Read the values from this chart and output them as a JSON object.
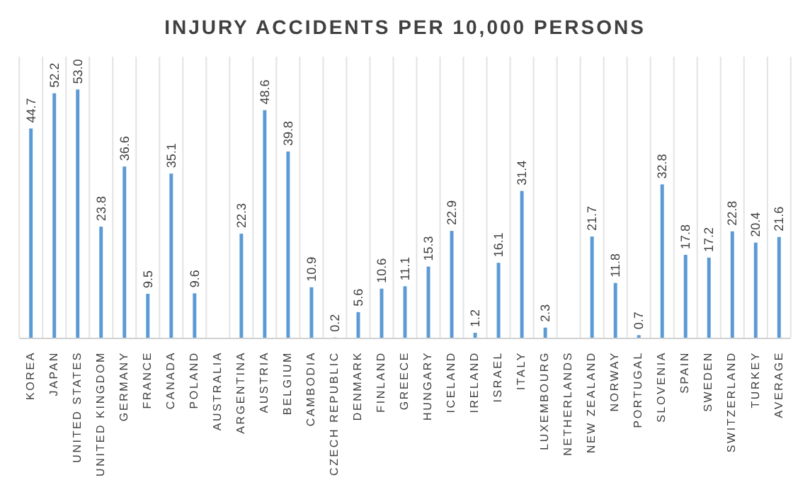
{
  "chart_data": {
    "type": "bar",
    "title": "INJURY ACCIDENTS PER 10,000 PERSONS",
    "categories": [
      "KOREA",
      "JAPAN",
      "UNITED STATES",
      "UNITED KINGDOM",
      "GERMANY",
      "FRANCE",
      "CANADA",
      "POLAND",
      "AUSTRALIA",
      "ARGENTINA",
      "AUSTRIA",
      "BELGIUM",
      "CAMBODIA",
      "CZECH REPUBLIC",
      "DENMARK",
      "FINLAND",
      "GREECE",
      "HUNGARY",
      "ICELAND",
      "IRELAND",
      "ISRAEL",
      "ITALY",
      "LUXEMBOURG",
      "NETHERLANDS",
      "NEW ZEALAND",
      "NORWAY",
      "PORTUGAL",
      "SLOVENIA",
      "SPAIN",
      "SWEDEN",
      "SWITZERLAND",
      "TURKEY",
      "AVERAGE"
    ],
    "values": [
      44.7,
      52.2,
      53.0,
      23.8,
      36.6,
      9.5,
      35.1,
      9.6,
      null,
      22.3,
      48.6,
      39.8,
      10.9,
      0.2,
      5.6,
      10.6,
      11.1,
      15.3,
      22.9,
      1.2,
      16.1,
      31.4,
      2.3,
      null,
      21.7,
      11.8,
      0.7,
      32.8,
      17.8,
      17.2,
      22.8,
      20.4,
      21.6
    ],
    "value_labels": [
      "44.7",
      "52.2",
      "53.0",
      "23.8",
      "36.6",
      "9.5",
      "35.1",
      "9.6",
      null,
      "22.3",
      "48.6",
      "39.8",
      "10.9",
      "0.2",
      "5.6",
      "10.6",
      "11.1",
      "15.3",
      "22.9",
      "1.2",
      "16.1",
      "31.4",
      "2.3",
      null,
      "21.7",
      "11.8",
      "0.7",
      "32.8",
      "17.8",
      "17.2",
      "22.8",
      "20.4",
      "21.6"
    ],
    "color": "#5b9bd5",
    "ylim": [
      0,
      60
    ],
    "grid": "x",
    "tick_labels": "x"
  }
}
